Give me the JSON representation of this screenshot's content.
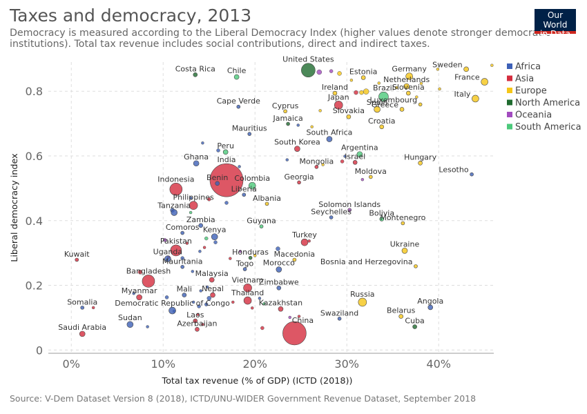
{
  "title": "Taxes and democracy, 2013",
  "subtitle": "Democracy is measured according to the Liberal Democracy Index (higher values denote stronger democratic institutions). Total tax revenue includes social contributions, direct and indirect taxes.",
  "logo": {
    "line1": "Our World",
    "line2": "in Data"
  },
  "source": "Source: V-Dem Dataset Version 8 (2018), ICTD/UNU-WIDER Government Revenue Dataset, September 2018",
  "colors": {
    "Africa": "#3d60b7",
    "Asia": "#d42d3e",
    "Europe": "#f5c618",
    "North America": "#1f6b2f",
    "Oceania": "#a24bbf",
    "South America": "#4cc97b"
  },
  "chart_data": {
    "type": "scatter",
    "title": "Taxes and democracy, 2013",
    "xlabel": "Total tax revenue (% of GDP) (ICTD (2018))",
    "ylabel": "Liberal democracy index",
    "xlim": [
      -2.5,
      46
    ],
    "ylim": [
      -0.01,
      0.89
    ],
    "x_ticks": [
      0,
      10,
      20,
      30,
      40
    ],
    "x_tick_labels": [
      "0%",
      "10%",
      "20%",
      "30%",
      "40%"
    ],
    "y_ticks": [
      0,
      0.2,
      0.4,
      0.6,
      0.8
    ],
    "y_tick_labels": [
      "0",
      "0.2",
      "0.4",
      "0.6",
      "0.8"
    ],
    "grid": true,
    "legend_position": "right",
    "legend": [
      "Africa",
      "Asia",
      "Europe",
      "North America",
      "Oceania",
      "South America"
    ],
    "points": [
      {
        "label": "United States",
        "x": 25.8,
        "y": 0.865,
        "continent": "North America",
        "size": 10
      },
      {
        "label": "Costa Rica",
        "x": 13.5,
        "y": 0.851,
        "continent": "North America",
        "size": 3
      },
      {
        "label": "Chile",
        "x": 18,
        "y": 0.844,
        "continent": "South America",
        "size": 3.5
      },
      {
        "label": "Estonia",
        "x": 31.8,
        "y": 0.842,
        "continent": "Europe",
        "size": 3
      },
      {
        "label": "Germany",
        "x": 36.8,
        "y": 0.846,
        "continent": "Europe",
        "size": 5
      },
      {
        "label": "Sweden",
        "x": 43,
        "y": 0.868,
        "continent": "Europe",
        "size": 3.5
      },
      {
        "label": "France",
        "x": 45,
        "y": 0.829,
        "continent": "Europe",
        "size": 5
      },
      {
        "label": "Netherlands",
        "x": 36.5,
        "y": 0.815,
        "continent": "Europe",
        "size": 4
      },
      {
        "label": "Ireland",
        "x": 28.7,
        "y": 0.794,
        "continent": "Europe",
        "size": 3
      },
      {
        "label": "Brazil",
        "x": 34,
        "y": 0.783,
        "continent": "South America",
        "size": 7
      },
      {
        "label": "Slovenia",
        "x": 36.7,
        "y": 0.794,
        "continent": "Europe",
        "size": 3
      },
      {
        "label": "Italy",
        "x": 44,
        "y": 0.777,
        "continent": "Europe",
        "size": 5
      },
      {
        "label": "Japan",
        "x": 29.1,
        "y": 0.757,
        "continent": "Asia",
        "size": 6
      },
      {
        "label": "Luxembourg",
        "x": 38,
        "y": 0.759,
        "continent": "Europe",
        "size": 2.5
      },
      {
        "label": "Spain",
        "x": 33.3,
        "y": 0.744,
        "continent": "Europe",
        "size": 4.5
      },
      {
        "label": "Greece",
        "x": 36,
        "y": 0.744,
        "continent": "Europe",
        "size": 3
      },
      {
        "label": "Cape Verde",
        "x": 18.2,
        "y": 0.752,
        "continent": "Africa",
        "size": 2.5
      },
      {
        "label": "Cyprus",
        "x": 23.3,
        "y": 0.738,
        "continent": "Europe",
        "size": 2.5
      },
      {
        "label": "Slovakia",
        "x": 30.2,
        "y": 0.721,
        "continent": "Europe",
        "size": 3
      },
      {
        "label": "Jamaica",
        "x": 23.6,
        "y": 0.699,
        "continent": "North America",
        "size": 2.5
      },
      {
        "label": "Croatia",
        "x": 33.8,
        "y": 0.69,
        "continent": "Europe",
        "size": 3
      },
      {
        "label": "Mauritius",
        "x": 19.4,
        "y": 0.668,
        "continent": "Africa",
        "size": 2.5
      },
      {
        "label": "South Africa",
        "x": 28.1,
        "y": 0.652,
        "continent": "Africa",
        "size": 4
      },
      {
        "label": "South Korea",
        "x": 24.6,
        "y": 0.622,
        "continent": "Asia",
        "size": 4
      },
      {
        "label": "Peru",
        "x": 16.8,
        "y": 0.612,
        "continent": "South America",
        "size": 3.5
      },
      {
        "label": "Argentina",
        "x": 31.4,
        "y": 0.605,
        "continent": "South America",
        "size": 4
      },
      {
        "label": "Ghana",
        "x": 13.6,
        "y": 0.577,
        "continent": "Africa",
        "size": 4
      },
      {
        "label": "Israel",
        "x": 30.9,
        "y": 0.58,
        "continent": "Asia",
        "size": 3
      },
      {
        "label": "Mongolia",
        "x": 26.7,
        "y": 0.566,
        "continent": "Asia",
        "size": 2.5
      },
      {
        "label": "Hungary",
        "x": 38,
        "y": 0.578,
        "continent": "Europe",
        "size": 3
      },
      {
        "label": "Lesotho",
        "x": 43.6,
        "y": 0.543,
        "continent": "Africa",
        "size": 2.5
      },
      {
        "label": "India",
        "x": 16.9,
        "y": 0.525,
        "continent": "Asia",
        "size": 24
      },
      {
        "label": "Benin",
        "x": 15.9,
        "y": 0.515,
        "continent": "Africa",
        "size": 3
      },
      {
        "label": "Moldova",
        "x": 32.6,
        "y": 0.535,
        "continent": "Europe",
        "size": 2.5
      },
      {
        "label": "Indonesia",
        "x": 11.4,
        "y": 0.497,
        "continent": "Asia",
        "size": 9
      },
      {
        "label": "Colombia",
        "x": 19.7,
        "y": 0.508,
        "continent": "South America",
        "size": 5
      },
      {
        "label": "Georgia",
        "x": 24.8,
        "y": 0.518,
        "continent": "Asia",
        "size": 2.5
      },
      {
        "label": "Liberia",
        "x": 18.8,
        "y": 0.48,
        "continent": "Africa",
        "size": 2.5
      },
      {
        "label": "Philippines",
        "x": 13.3,
        "y": 0.447,
        "continent": "Asia",
        "size": 6
      },
      {
        "label": "Albania",
        "x": 21.3,
        "y": 0.452,
        "continent": "Europe",
        "size": 2.5
      },
      {
        "label": "Tanzania",
        "x": 11.2,
        "y": 0.425,
        "continent": "Africa",
        "size": 4.5
      },
      {
        "label": "Solomon Islands",
        "x": 30.3,
        "y": 0.433,
        "continent": "Oceania",
        "size": 2.5
      },
      {
        "label": "Seychelles",
        "x": 28.3,
        "y": 0.41,
        "continent": "Africa",
        "size": 2.5
      },
      {
        "label": "Bolivia",
        "x": 33.8,
        "y": 0.405,
        "continent": "South America",
        "size": 3
      },
      {
        "label": "Montenegro",
        "x": 36.1,
        "y": 0.392,
        "continent": "Europe",
        "size": 2.5
      },
      {
        "label": "Zambia",
        "x": 14.1,
        "y": 0.385,
        "continent": "Africa",
        "size": 3
      },
      {
        "label": "Guyana",
        "x": 20.7,
        "y": 0.382,
        "continent": "South America",
        "size": 2.5
      },
      {
        "label": "Comoros",
        "x": 12.1,
        "y": 0.362,
        "continent": "Africa",
        "size": 2.5
      },
      {
        "label": "Kenya",
        "x": 15.6,
        "y": 0.35,
        "continent": "Africa",
        "size": 4.5
      },
      {
        "label": "Pakistan",
        "x": 11.4,
        "y": 0.308,
        "continent": "Asia",
        "size": 8
      },
      {
        "label": "Turkey",
        "x": 25.4,
        "y": 0.333,
        "continent": "Asia",
        "size": 5
      },
      {
        "label": "Ukraine",
        "x": 36.3,
        "y": 0.307,
        "continent": "Europe",
        "size": 4
      },
      {
        "label": "Uganda",
        "x": 10.5,
        "y": 0.282,
        "continent": "Africa",
        "size": 4.5
      },
      {
        "label": "Honduras",
        "x": 19.5,
        "y": 0.285,
        "continent": "North America",
        "size": 2.5
      },
      {
        "label": "Macedonia",
        "x": 24.3,
        "y": 0.279,
        "continent": "Europe",
        "size": 2.5
      },
      {
        "label": "Kuwait",
        "x": 0.6,
        "y": 0.279,
        "continent": "Asia",
        "size": 2.5
      },
      {
        "label": "Mauritania",
        "x": 12.1,
        "y": 0.257,
        "continent": "Africa",
        "size": 2.5
      },
      {
        "label": "Togo",
        "x": 18.9,
        "y": 0.25,
        "continent": "Africa",
        "size": 2.5
      },
      {
        "label": "Morocco",
        "x": 22.6,
        "y": 0.249,
        "continent": "Africa",
        "size": 4
      },
      {
        "label": "Bosnia and Herzegovina",
        "x": 37.5,
        "y": 0.259,
        "continent": "Europe",
        "size": 2.5
      },
      {
        "label": "Bangladesh",
        "x": 8.4,
        "y": 0.213,
        "continent": "Asia",
        "size": 9
      },
      {
        "label": "Malaysia",
        "x": 15.3,
        "y": 0.217,
        "continent": "Asia",
        "size": 3.5
      },
      {
        "label": "Vietnam",
        "x": 19.2,
        "y": 0.192,
        "continent": "Asia",
        "size": 6
      },
      {
        "label": "Zimbabwe",
        "x": 22.6,
        "y": 0.192,
        "continent": "Africa",
        "size": 3
      },
      {
        "label": "Myanmar",
        "x": 7.4,
        "y": 0.163,
        "continent": "Asia",
        "size": 4
      },
      {
        "label": "Mali",
        "x": 12.3,
        "y": 0.17,
        "continent": "Africa",
        "size": 3
      },
      {
        "label": "Nepal",
        "x": 15.4,
        "y": 0.17,
        "continent": "Asia",
        "size": 3.5
      },
      {
        "label": "Thailand",
        "x": 19.2,
        "y": 0.153,
        "continent": "Asia",
        "size": 5.5
      },
      {
        "label": "Somalia",
        "x": 1.2,
        "y": 0.131,
        "continent": "Africa",
        "size": 2.5
      },
      {
        "label": "Democratic Republic of Congo",
        "x": 11,
        "y": 0.122,
        "continent": "Africa",
        "size": 5
      },
      {
        "label": "Kazakhstan",
        "x": 22.8,
        "y": 0.127,
        "continent": "Asia",
        "size": 3.5
      },
      {
        "label": "Russia",
        "x": 31.7,
        "y": 0.148,
        "continent": "Europe",
        "size": 6
      },
      {
        "label": "Angola",
        "x": 39.1,
        "y": 0.132,
        "continent": "Africa",
        "size": 3.5
      },
      {
        "label": "Laos",
        "x": 13.5,
        "y": 0.09,
        "continent": "Asia",
        "size": 3
      },
      {
        "label": "Belarus",
        "x": 35.9,
        "y": 0.104,
        "continent": "Europe",
        "size": 3
      },
      {
        "label": "Swaziland",
        "x": 29.2,
        "y": 0.097,
        "continent": "Africa",
        "size": 2.5
      },
      {
        "label": "Sudan",
        "x": 6.4,
        "y": 0.079,
        "continent": "Africa",
        "size": 4.5
      },
      {
        "label": "Cuba",
        "x": 37.4,
        "y": 0.072,
        "continent": "North America",
        "size": 3
      },
      {
        "label": "Azerbaijan",
        "x": 13.7,
        "y": 0.064,
        "continent": "Asia",
        "size": 3
      },
      {
        "label": "China",
        "x": 24.3,
        "y": 0.052,
        "continent": "Asia",
        "size": 17
      },
      {
        "label": "Saudi Arabia",
        "x": 1.2,
        "y": 0.05,
        "continent": "Asia",
        "size": 4
      }
    ],
    "unlabeled_points": [
      {
        "x": 29.2,
        "y": 0.855,
        "continent": "Europe",
        "size": 3
      },
      {
        "x": 30.5,
        "y": 0.834,
        "continent": "Europe",
        "size": 2
      },
      {
        "x": 33.5,
        "y": 0.825,
        "continent": "Europe",
        "size": 2
      },
      {
        "x": 38.1,
        "y": 0.824,
        "continent": "Europe",
        "size": 2
      },
      {
        "x": 39.9,
        "y": 0.868,
        "continent": "Europe",
        "size": 2
      },
      {
        "x": 45.8,
        "y": 0.88,
        "continent": "Europe",
        "size": 2
      },
      {
        "x": 32.1,
        "y": 0.799,
        "continent": "Europe",
        "size": 4
      },
      {
        "x": 40.1,
        "y": 0.807,
        "continent": "Europe",
        "size": 2
      },
      {
        "x": 37.6,
        "y": 0.782,
        "continent": "Europe",
        "size": 2
      },
      {
        "x": 27.1,
        "y": 0.74,
        "continent": "Europe",
        "size": 2
      },
      {
        "x": 31.0,
        "y": 0.796,
        "continent": "Asia",
        "size": 3
      },
      {
        "x": 31.6,
        "y": 0.796,
        "continent": "Europe",
        "size": 3
      },
      {
        "x": 35.4,
        "y": 0.811,
        "continent": "Europe",
        "size": 2
      },
      {
        "x": 27.0,
        "y": 0.859,
        "continent": "Oceania",
        "size": 3.5
      },
      {
        "x": 28.3,
        "y": 0.862,
        "continent": "Oceania",
        "size": 2.5
      },
      {
        "x": 24.7,
        "y": 0.695,
        "continent": "Africa",
        "size": 2
      },
      {
        "x": 26.2,
        "y": 0.69,
        "continent": "Europe",
        "size": 2
      },
      {
        "x": 23.5,
        "y": 0.588,
        "continent": "Africa",
        "size": 2
      },
      {
        "x": 29.8,
        "y": 0.599,
        "continent": "Africa",
        "size": 2
      },
      {
        "x": 27.4,
        "y": 0.573,
        "continent": "Europe",
        "size": 2
      },
      {
        "x": 29.5,
        "y": 0.583,
        "continent": "Asia",
        "size": 2.5
      },
      {
        "x": 31.7,
        "y": 0.527,
        "continent": "Oceania",
        "size": 2
      },
      {
        "x": 18.3,
        "y": 0.567,
        "continent": "Africa",
        "size": 2
      },
      {
        "x": 16.0,
        "y": 0.617,
        "continent": "Africa",
        "size": 2.5
      },
      {
        "x": 14.3,
        "y": 0.64,
        "continent": "Africa",
        "size": 2
      },
      {
        "x": 16.9,
        "y": 0.455,
        "continent": "Africa",
        "size": 2.5
      },
      {
        "x": 15.0,
        "y": 0.466,
        "continent": "Asia",
        "size": 2.5
      },
      {
        "x": 13.0,
        "y": 0.425,
        "continent": "South America",
        "size": 2
      },
      {
        "x": 13.0,
        "y": 0.47,
        "continent": "Africa",
        "size": 2
      },
      {
        "x": 11.0,
        "y": 0.432,
        "continent": "Africa",
        "size": 3
      },
      {
        "x": 10.2,
        "y": 0.34,
        "continent": "Oceania",
        "size": 2.5
      },
      {
        "x": 12.6,
        "y": 0.33,
        "continent": "Asia",
        "size": 2
      },
      {
        "x": 14.7,
        "y": 0.345,
        "continent": "South America",
        "size": 2.5
      },
      {
        "x": 15.7,
        "y": 0.333,
        "continent": "Africa",
        "size": 2.5
      },
      {
        "x": 14.0,
        "y": 0.305,
        "continent": "Africa",
        "size": 2
      },
      {
        "x": 14.5,
        "y": 0.317,
        "continent": "Asia",
        "size": 2
      },
      {
        "x": 18.4,
        "y": 0.305,
        "continent": "Oceania",
        "size": 2
      },
      {
        "x": 20.0,
        "y": 0.292,
        "continent": "Europe",
        "size": 2
      },
      {
        "x": 22.5,
        "y": 0.313,
        "continent": "Africa",
        "size": 3
      },
      {
        "x": 25.9,
        "y": 0.337,
        "continent": "Asia",
        "size": 2
      },
      {
        "x": 17.3,
        "y": 0.283,
        "continent": "Asia",
        "size": 2
      },
      {
        "x": 12.1,
        "y": 0.284,
        "continent": "Africa",
        "size": 2.5
      },
      {
        "x": 10.6,
        "y": 0.287,
        "continent": "Asia",
        "size": 2
      },
      {
        "x": 13.2,
        "y": 0.243,
        "continent": "Africa",
        "size": 2
      },
      {
        "x": 7.5,
        "y": 0.241,
        "continent": "Asia",
        "size": 3
      },
      {
        "x": 14.1,
        "y": 0.183,
        "continent": "Africa",
        "size": 2
      },
      {
        "x": 14.8,
        "y": 0.195,
        "continent": "Africa",
        "size": 2
      },
      {
        "x": 10.4,
        "y": 0.163,
        "continent": "Africa",
        "size": 2.5
      },
      {
        "x": 6.8,
        "y": 0.175,
        "continent": "Africa",
        "size": 2
      },
      {
        "x": 15.0,
        "y": 0.16,
        "continent": "Africa",
        "size": 3
      },
      {
        "x": 14.7,
        "y": 0.141,
        "continent": "Africa",
        "size": 2.5
      },
      {
        "x": 13.3,
        "y": 0.148,
        "continent": "Africa",
        "size": 2
      },
      {
        "x": 17.6,
        "y": 0.148,
        "continent": "Asia",
        "size": 2
      },
      {
        "x": 19.7,
        "y": 0.13,
        "continent": "Asia",
        "size": 2
      },
      {
        "x": 21.0,
        "y": 0.143,
        "continent": "South America",
        "size": 2
      },
      {
        "x": 20.5,
        "y": 0.16,
        "continent": "Africa",
        "size": 2
      },
      {
        "x": 2.4,
        "y": 0.131,
        "continent": "Asia",
        "size": 2
      },
      {
        "x": 11.2,
        "y": 0.12,
        "continent": "Africa",
        "size": 2
      },
      {
        "x": 13.9,
        "y": 0.135,
        "continent": "Africa",
        "size": 2.5
      },
      {
        "x": 23.8,
        "y": 0.101,
        "continent": "Oceania",
        "size": 2
      },
      {
        "x": 24.8,
        "y": 0.104,
        "continent": "Asia",
        "size": 2
      },
      {
        "x": 13.8,
        "y": 0.11,
        "continent": "Asia",
        "size": 2
      },
      {
        "x": 8.3,
        "y": 0.072,
        "continent": "Africa",
        "size": 2
      },
      {
        "x": 20.8,
        "y": 0.068,
        "continent": "Asia",
        "size": 2.5
      },
      {
        "x": 14.3,
        "y": 0.079,
        "continent": "Asia",
        "size": 2
      }
    ]
  }
}
